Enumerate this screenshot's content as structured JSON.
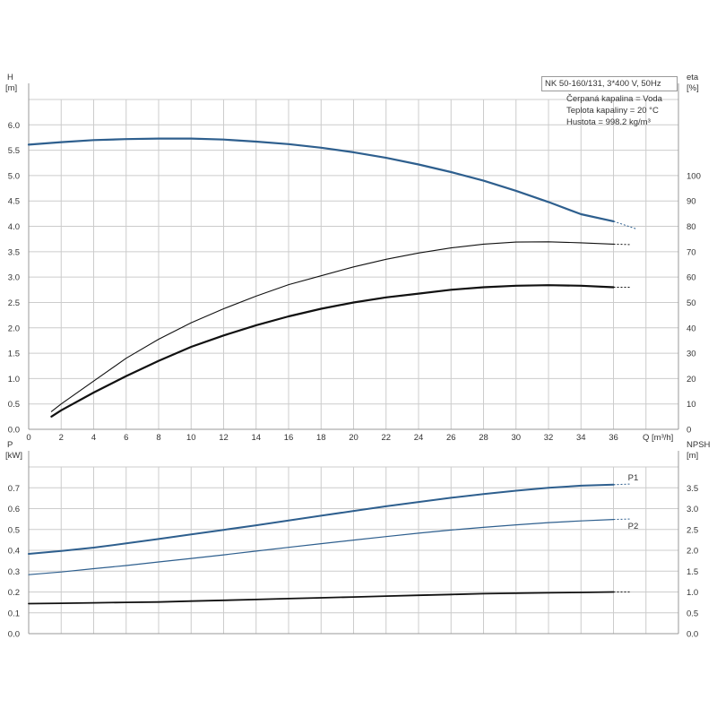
{
  "info": {
    "title": "NK 50-160/131, 3*400 V, 50Hz",
    "lines": [
      "Čerpaná kapalina = Voda",
      "Teplota kapaliny = 20 °C",
      "Hustota = 998.2 kg/m³"
    ]
  },
  "colors": {
    "blue": "#2e5f8e",
    "black": "#111111",
    "grid": "#cccccc",
    "axis": "#999999"
  },
  "chart_data": [
    {
      "type": "line",
      "x": [
        0,
        2,
        4,
        6,
        8,
        10,
        12,
        14,
        16,
        18,
        20,
        22,
        24,
        26,
        28,
        30,
        32,
        34,
        36,
        37.4
      ],
      "xlim": [
        0,
        40
      ],
      "xticks": [
        0,
        2,
        4,
        6,
        8,
        10,
        12,
        14,
        16,
        18,
        20,
        22,
        24,
        26,
        28,
        30,
        32,
        34,
        36
      ],
      "xlabel": "Q [m³/h]",
      "ylabel_left": [
        "H",
        "[m]"
      ],
      "ylim_left": [
        0,
        6.5
      ],
      "yticks_left": [
        "0.0",
        "0.5",
        "1.0",
        "1.5",
        "2.0",
        "2.5",
        "3.0",
        "3.5",
        "4.0",
        "4.5",
        "5.0",
        "5.5",
        "6.0"
      ],
      "ylabel_right": [
        "eta",
        "[%]"
      ],
      "ylim_right": [
        0,
        130
      ],
      "yticks_right": [
        "0",
        "10",
        "20",
        "30",
        "40",
        "50",
        "60",
        "70",
        "80",
        "90",
        "100"
      ],
      "grid": true,
      "series": [
        {
          "axis": "left",
          "style": "head",
          "x": [
            0,
            2,
            4,
            6,
            8,
            10,
            12,
            14,
            16,
            18,
            20,
            22,
            24,
            26,
            28,
            30,
            32,
            34,
            36
          ],
          "y": [
            5.61,
            5.66,
            5.7,
            5.72,
            5.73,
            5.73,
            5.71,
            5.67,
            5.62,
            5.55,
            5.46,
            5.35,
            5.22,
            5.07,
            4.9,
            4.7,
            4.48,
            4.24,
            4.1
          ],
          "ext_x": [
            36,
            37.4
          ],
          "ext_y": [
            4.1,
            3.95
          ]
        },
        {
          "axis": "right",
          "style": "eta1",
          "x": [
            1.4,
            2,
            4,
            6,
            8,
            10,
            12,
            14,
            16,
            18,
            20,
            22,
            24,
            26,
            28,
            30,
            32,
            34,
            36
          ],
          "y": [
            7,
            10,
            19,
            28,
            35.5,
            42,
            47.5,
            52.5,
            57,
            60.5,
            64,
            67,
            69.5,
            71.5,
            73,
            73.8,
            73.9,
            73.5,
            73
          ],
          "ext_x": [
            36,
            37
          ],
          "ext_y": [
            73,
            72.8
          ]
        },
        {
          "axis": "right",
          "style": "eta2",
          "x": [
            1.4,
            2,
            4,
            6,
            8,
            10,
            12,
            14,
            16,
            18,
            20,
            22,
            24,
            26,
            28,
            30,
            32,
            34,
            36
          ],
          "y": [
            5,
            7.5,
            14.5,
            21,
            27,
            32.5,
            37,
            41,
            44.5,
            47.5,
            50,
            52,
            53.5,
            55,
            56,
            56.6,
            56.8,
            56.6,
            56
          ],
          "ext_x": [
            36,
            37
          ],
          "ext_y": [
            56,
            56
          ]
        }
      ]
    },
    {
      "type": "line",
      "x": [
        0,
        2,
        4,
        6,
        8,
        10,
        12,
        14,
        16,
        18,
        20,
        22,
        24,
        26,
        28,
        30,
        32,
        34,
        36,
        37
      ],
      "xlim": [
        0,
        40
      ],
      "ylabel_left": [
        "P",
        "[kW]"
      ],
      "ylim_left": [
        0,
        0.8
      ],
      "yticks_left": [
        "0.0",
        "0.1",
        "0.2",
        "0.3",
        "0.4",
        "0.5",
        "0.6",
        "0.7"
      ],
      "ylabel_right": [
        "NPSH",
        "[m]"
      ],
      "ylim_right": [
        0,
        4.0
      ],
      "yticks_right": [
        "0.0",
        "0.5",
        "1.0",
        "1.5",
        "2.0",
        "2.5",
        "3.0",
        "3.5"
      ],
      "grid": true,
      "series": [
        {
          "name": "P1",
          "axis": "left",
          "style": "p1",
          "x": [
            0,
            2,
            4,
            6,
            8,
            10,
            12,
            14,
            16,
            18,
            20,
            22,
            24,
            26,
            28,
            30,
            32,
            34,
            36
          ],
          "y": [
            0.383,
            0.397,
            0.413,
            0.433,
            0.454,
            0.476,
            0.498,
            0.52,
            0.543,
            0.566,
            0.589,
            0.611,
            0.632,
            0.652,
            0.67,
            0.686,
            0.7,
            0.71,
            0.715
          ],
          "ext_x": [
            36,
            37
          ],
          "ext_y": [
            0.715,
            0.718
          ]
        },
        {
          "name": "P2",
          "axis": "left",
          "style": "p2",
          "x": [
            0,
            2,
            4,
            6,
            8,
            10,
            12,
            14,
            16,
            18,
            20,
            22,
            24,
            26,
            28,
            30,
            32,
            34,
            36
          ],
          "y": [
            0.283,
            0.296,
            0.312,
            0.327,
            0.344,
            0.361,
            0.378,
            0.396,
            0.414,
            0.432,
            0.449,
            0.466,
            0.482,
            0.497,
            0.51,
            0.522,
            0.533,
            0.541,
            0.548
          ],
          "ext_x": [
            36,
            37
          ],
          "ext_y": [
            0.548,
            0.55
          ]
        },
        {
          "axis": "right",
          "style": "npsh",
          "x": [
            0,
            2,
            4,
            6,
            8,
            10,
            12,
            14,
            16,
            18,
            20,
            22,
            24,
            26,
            28,
            30,
            32,
            34,
            36
          ],
          "y": [
            0.72,
            0.73,
            0.74,
            0.75,
            0.76,
            0.78,
            0.8,
            0.82,
            0.84,
            0.86,
            0.88,
            0.9,
            0.92,
            0.94,
            0.96,
            0.97,
            0.98,
            0.99,
            1.0
          ],
          "ext_x": [
            36,
            37
          ],
          "ext_y": [
            1.0,
            1.0
          ]
        }
      ]
    }
  ]
}
